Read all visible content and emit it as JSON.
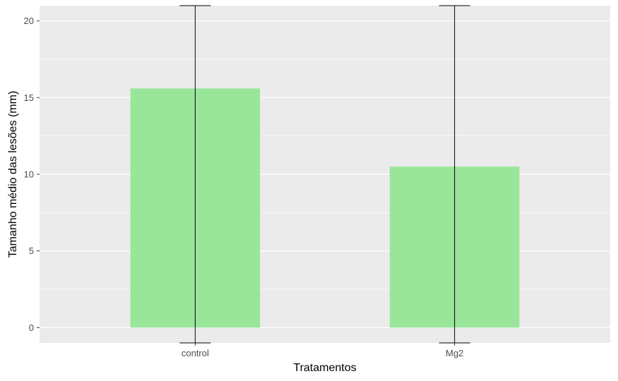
{
  "chart_data": {
    "type": "bar",
    "categories": [
      "control",
      "Mg2"
    ],
    "values": [
      15.6,
      10.5
    ],
    "error_bars": [
      {
        "low": -1,
        "high": 21
      },
      {
        "low": -1,
        "high": 21
      }
    ],
    "xlabel": "Tratamentos",
    "ylabel": "Tamanho médio das lesões  (mm)",
    "ylim": [
      -1,
      21
    ],
    "yticks": [
      0,
      5,
      10,
      15,
      20
    ],
    "grid": true,
    "colors": {
      "bar": "#99e69b",
      "panel": "#ebebeb",
      "grid": "#ffffff",
      "errorbar": "#000000"
    }
  }
}
